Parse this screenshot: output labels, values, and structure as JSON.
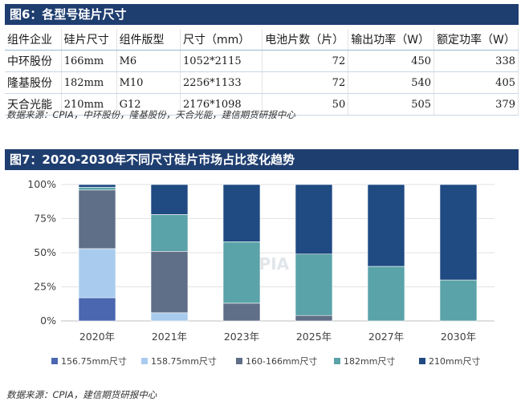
{
  "banner1": "图6：各型号硅片尺寸",
  "table": {
    "headers": [
      "组件企业",
      "硅片尺寸",
      "组件版型",
      "尺寸（mm）",
      "电池片数（片）",
      "输出功率（W）",
      "额定功率（W）"
    ],
    "rows": [
      [
        "中环股份",
        "166mm",
        "M6",
        "1052*2115",
        "72",
        "450",
        "338"
      ],
      [
        "隆基股份",
        "182mm",
        "M10",
        "2256*1133",
        "72",
        "540",
        "405"
      ],
      [
        "天合光能",
        "210mm",
        "G12",
        "2176*1098",
        "50",
        "505",
        "379"
      ]
    ]
  },
  "source1": "数据来源：CPIA，中环股份，隆基股份，天合光能，建信期货研报中心",
  "banner2": "图7：2020-2030年不同尺寸硅片市场占比变化趋势",
  "watermark": "CPIA",
  "source2": "数据来源：CPIA，建信期货研报中心",
  "chart_data": {
    "type": "bar",
    "stacked": true,
    "categories": [
      "2020年",
      "2021年",
      "2023年",
      "2025年",
      "2027年",
      "2030年"
    ],
    "y_ticks": [
      "0%",
      "25%",
      "50%",
      "75%",
      "100%"
    ],
    "ylim": [
      0,
      100
    ],
    "legend_position": "bottom",
    "grid": true,
    "series": [
      {
        "name": "156.75mm尺寸",
        "color": "#4a67b0",
        "values": [
          17,
          0,
          0,
          0,
          0,
          0
        ]
      },
      {
        "name": "158.75mm尺寸",
        "color": "#a9cbee",
        "values": [
          36,
          6,
          0,
          0,
          0,
          0
        ]
      },
      {
        "name": "160-166mm尺寸",
        "color": "#5f6f87",
        "values": [
          43,
          45,
          13,
          4,
          0,
          0
        ]
      },
      {
        "name": "182mm尺寸",
        "color": "#5aa3a8",
        "values": [
          2,
          27,
          45,
          45,
          40,
          30
        ]
      },
      {
        "name": "210mm尺寸",
        "color": "#1f4a82",
        "values": [
          2,
          22,
          42,
          51,
          60,
          70
        ]
      }
    ]
  }
}
